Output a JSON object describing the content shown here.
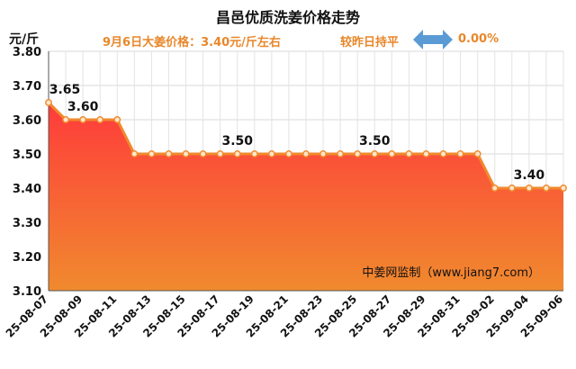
{
  "header": {
    "title": "昌邑优质洗姜价格走势",
    "unit": "元/斤",
    "price_note": "9月6日大姜价格：3.40元/斤左右",
    "change_label": "较昨日持平",
    "change_value": "0.00%"
  },
  "watermark": "中姜网监制（www.jiang7.com）",
  "colors": {
    "line": "#f08a2e",
    "fill_top": "#ff3b3b",
    "fill_bottom": "#f08a2e",
    "accent_text": "#e8872a",
    "arrow": "#5b9bd5"
  },
  "chart_data": {
    "type": "area",
    "x": [
      "25-08-07",
      "25-08-08",
      "25-08-09",
      "25-08-10",
      "25-08-11",
      "25-08-12",
      "25-08-13",
      "25-08-14",
      "25-08-15",
      "25-08-16",
      "25-08-17",
      "25-08-18",
      "25-08-19",
      "25-08-20",
      "25-08-21",
      "25-08-22",
      "25-08-23",
      "25-08-24",
      "25-08-25",
      "25-08-26",
      "25-08-27",
      "25-08-28",
      "25-08-29",
      "25-08-30",
      "25-08-31",
      "25-09-01",
      "25-09-02",
      "25-09-03",
      "25-09-04",
      "25-09-05",
      "25-09-06"
    ],
    "values": [
      3.65,
      3.6,
      3.6,
      3.6,
      3.6,
      3.5,
      3.5,
      3.5,
      3.5,
      3.5,
      3.5,
      3.5,
      3.5,
      3.5,
      3.5,
      3.5,
      3.5,
      3.5,
      3.5,
      3.5,
      3.5,
      3.5,
      3.5,
      3.5,
      3.5,
      3.5,
      3.4,
      3.4,
      3.4,
      3.4,
      3.4
    ],
    "x_tick_labels": [
      "25-08-07",
      "25-08-09",
      "25-08-11",
      "25-08-13",
      "25-08-15",
      "25-08-17",
      "25-08-19",
      "25-08-21",
      "25-08-23",
      "25-08-25",
      "25-08-27",
      "25-08-29",
      "25-08-31",
      "25-09-02",
      "25-09-04",
      "25-09-06"
    ],
    "y_tick_labels": [
      "3.10",
      "3.20",
      "3.30",
      "3.40",
      "3.50",
      "3.60",
      "3.70",
      "3.80"
    ],
    "ylim": [
      3.1,
      3.8
    ],
    "data_labels": [
      {
        "index": 0,
        "text": "3.65"
      },
      {
        "index": 2,
        "text": "3.60"
      },
      {
        "index": 11,
        "text": "3.50"
      },
      {
        "index": 19,
        "text": "3.50"
      },
      {
        "index": 28,
        "text": "3.40"
      }
    ],
    "grid": true
  }
}
